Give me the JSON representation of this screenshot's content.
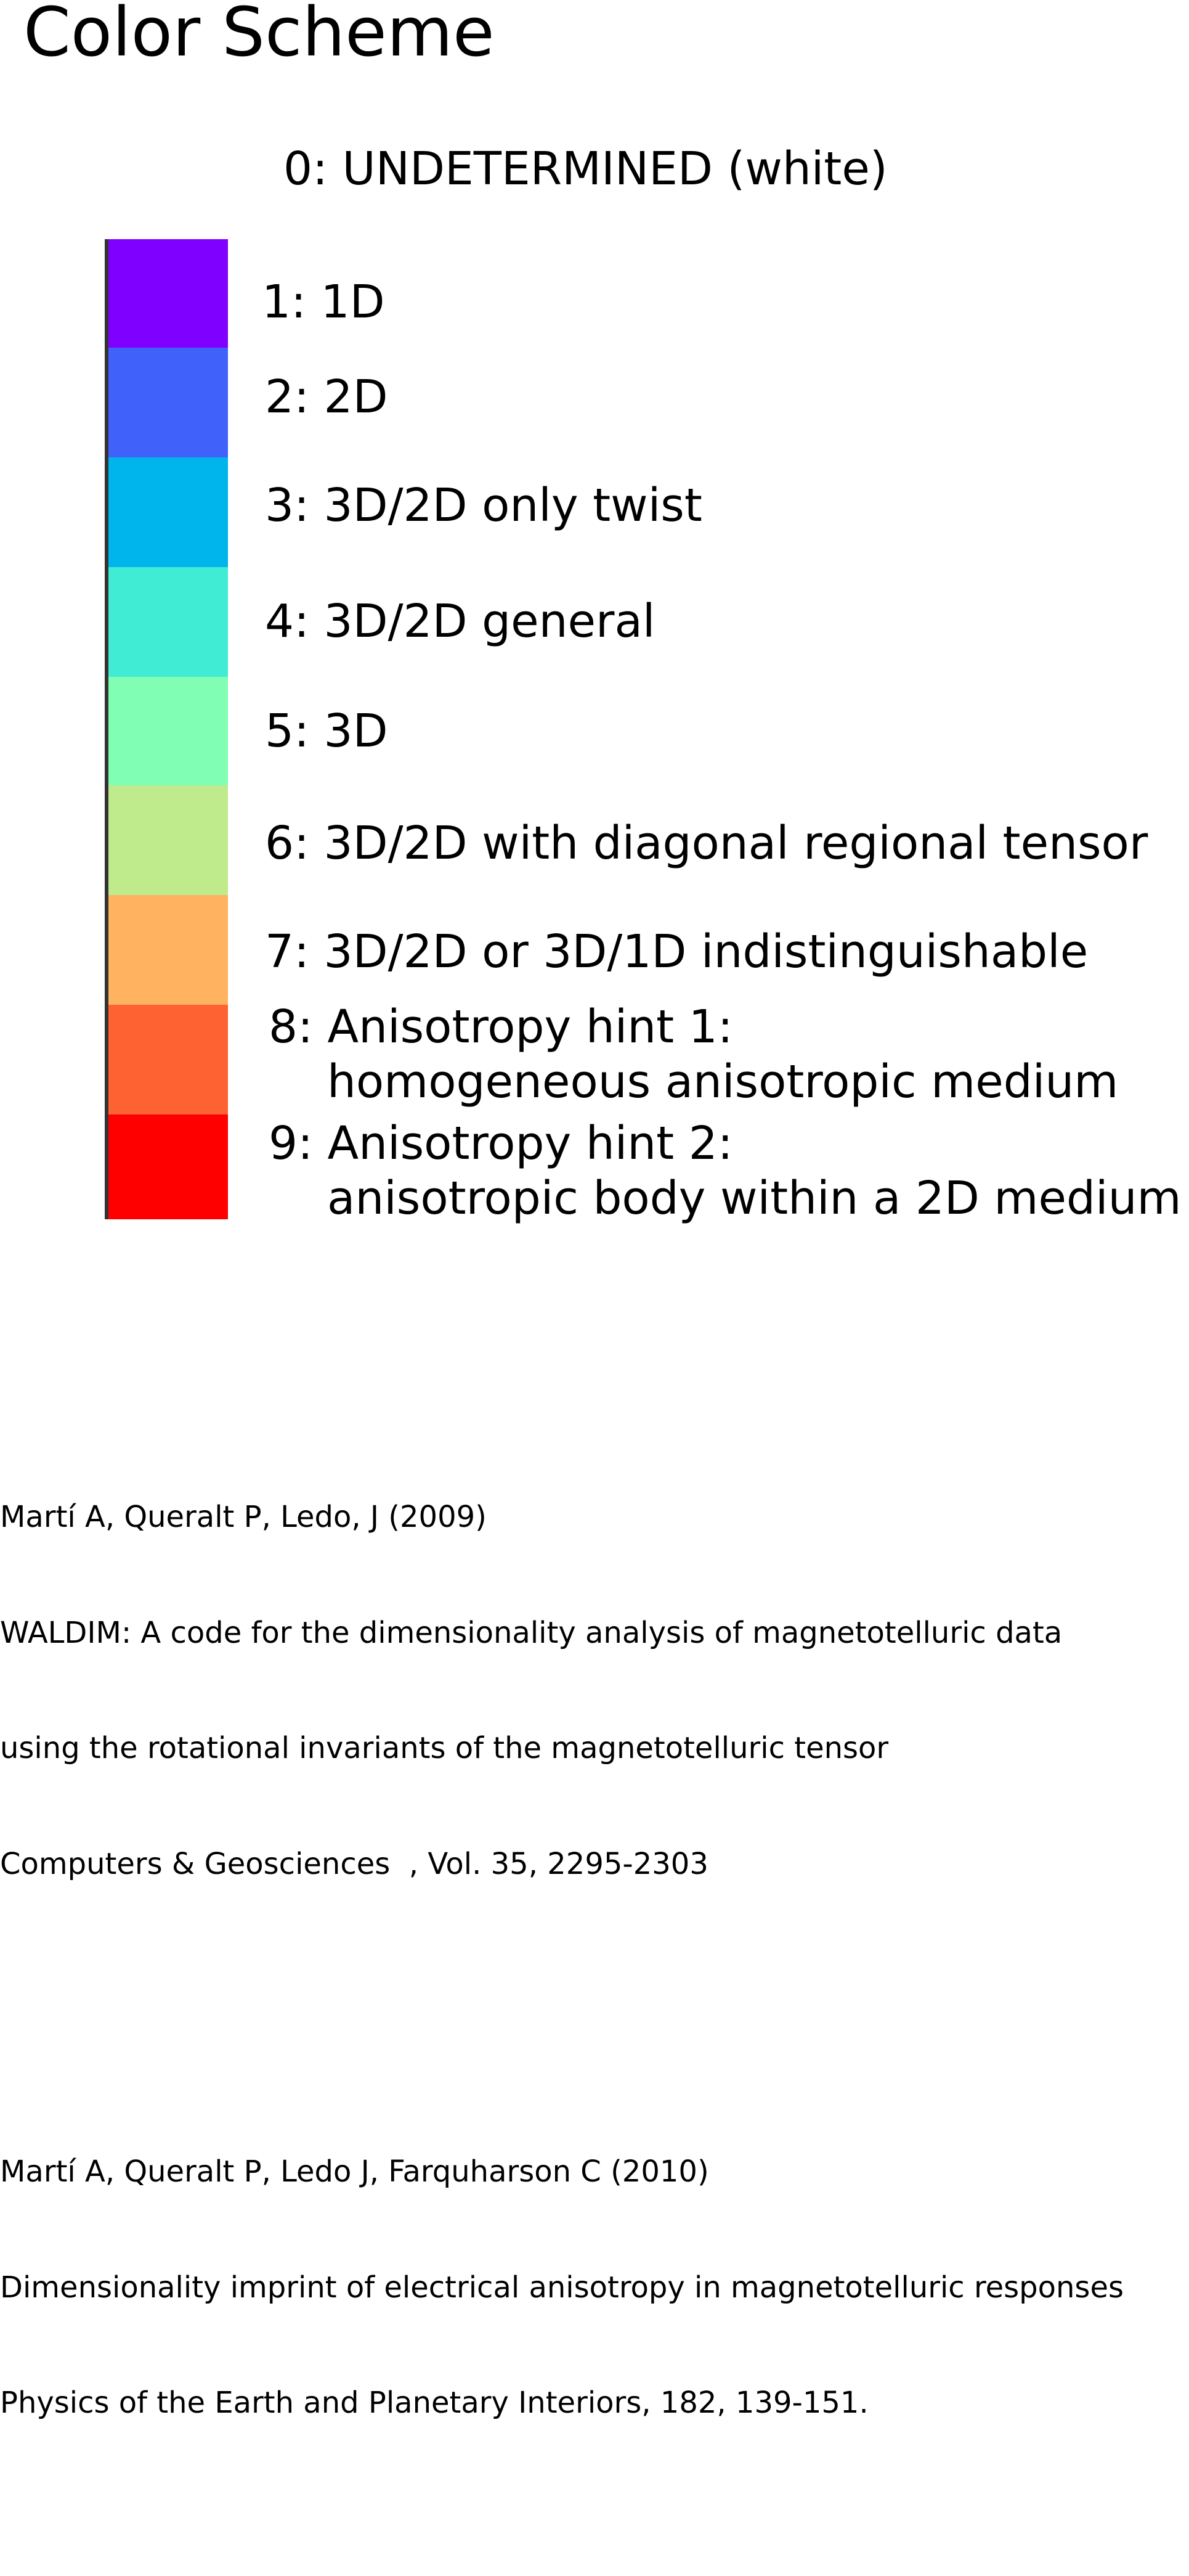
{
  "title": "Color Scheme",
  "undetermined_label": "0: UNDETERMINED (white)",
  "categories": [
    {
      "label": "1: 1D",
      "label_line2": "",
      "color": "#8000ff"
    },
    {
      "label": "2: 2D",
      "label_line2": "",
      "color": "#4062fa"
    },
    {
      "label": "3: 3D/2D only twist",
      "label_line2": "",
      "color": "#00b5eb"
    },
    {
      "label": "4: 3D/2D general",
      "label_line2": "",
      "color": "#40ecd4"
    },
    {
      "label": "5: 3D",
      "label_line2": "",
      "color": "#80ffb4"
    },
    {
      "label": "6: 3D/2D with diagonal regional tensor",
      "label_line2": "",
      "color": "#c0eb8d"
    },
    {
      "label": "7: 3D/2D or 3D/1D indistinguishable",
      "label_line2": "",
      "color": "#ffb360"
    },
    {
      "label": "8: Anisotropy hint 1:",
      "label_line2": "homogeneous anisotropic medium",
      "color": "#ff6232"
    },
    {
      "label": "9: Anisotropy hint 2:",
      "label_line2": "anisotropic body within a 2D medium",
      "color": "#ff0000"
    }
  ],
  "references": [
    {
      "lines": [
        "Martí A, Queralt P, Ledo, J (2009)",
        "WALDIM: A code for the dimensionality analysis of magnetotelluric data",
        "using the rotational invariants of the magnetotelluric tensor",
        "Computers & Geosciences  , Vol. 35, 2295-2303"
      ]
    },
    {
      "lines": [
        "Martí A, Queralt P, Ledo J, Farquharson C (2010)",
        "Dimensionality imprint of electrical anisotropy in magnetotelluric responses",
        "Physics of the Earth and Planetary Interiors, 182, 139-151."
      ]
    }
  ]
}
